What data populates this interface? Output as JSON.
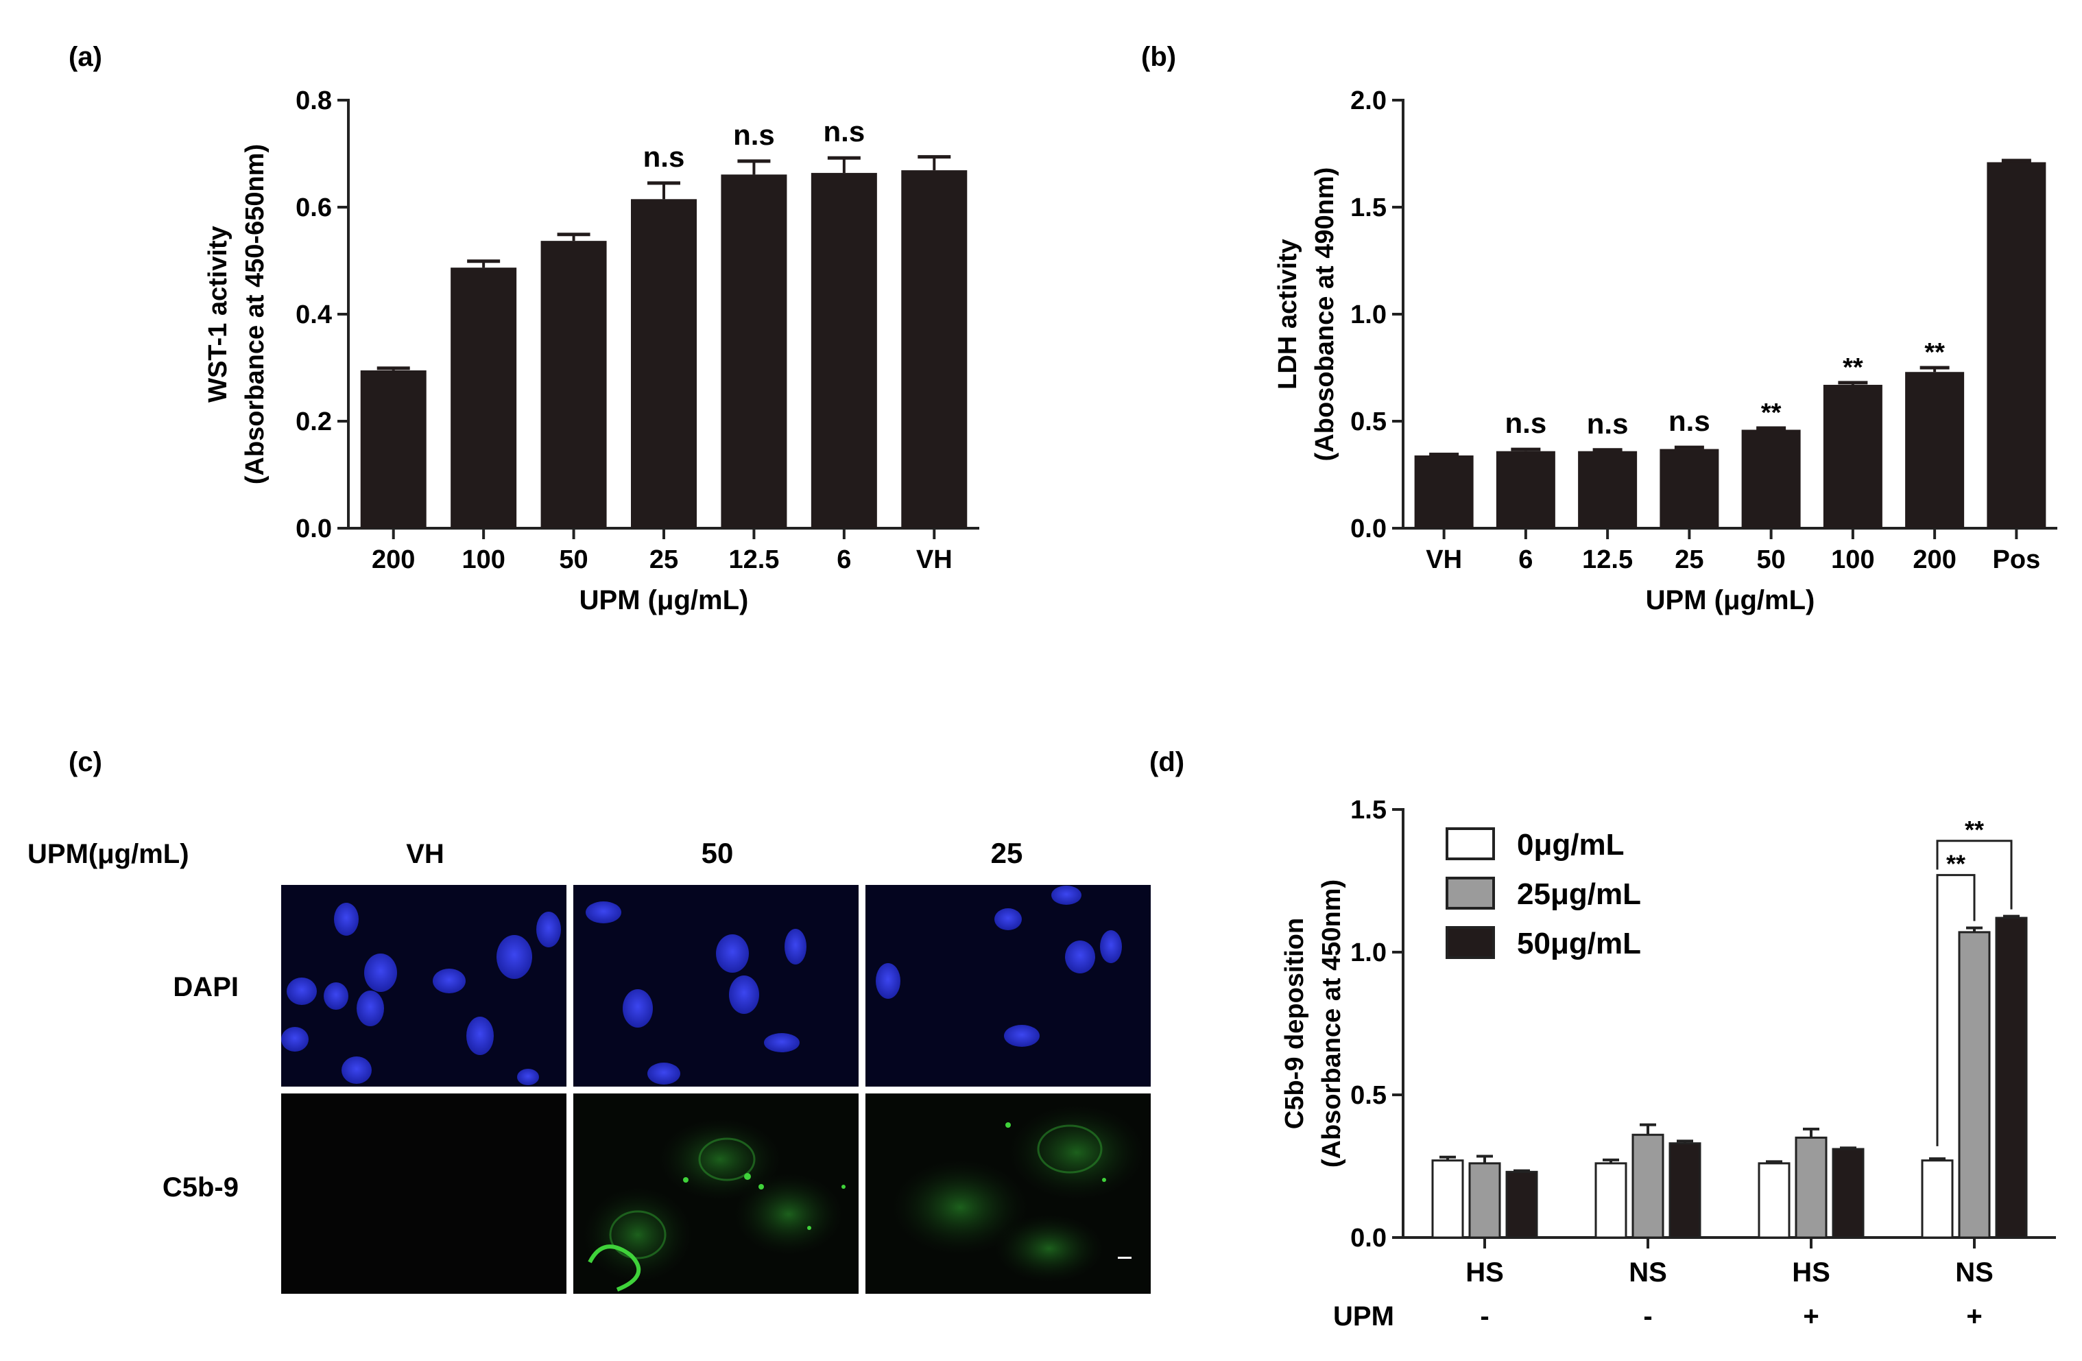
{
  "panel_labels": [
    "(a)",
    "(b)",
    "(c)",
    "(d)"
  ],
  "colors": {
    "bar_dark": "#221b1b",
    "bar_gray": "#9b9b9b",
    "bar_white": "#ffffff",
    "nucleus_blue": "#2a33d6",
    "stain_green": "#3fd23a",
    "image_bg": "#04051f"
  },
  "panel_c": {
    "row_header": "UPM(μg/mL)",
    "columns": [
      "VH",
      "50",
      "25"
    ],
    "rows": [
      "DAPI",
      "C5b-9"
    ]
  },
  "chart_data": [
    {
      "panel": "(a)",
      "type": "bar",
      "categories": [
        "200",
        "100",
        "50",
        "25",
        "12.5",
        "6",
        "VH"
      ],
      "values": [
        0.295,
        0.487,
        0.537,
        0.615,
        0.661,
        0.664,
        0.669
      ],
      "errors": [
        0.004,
        0.012,
        0.012,
        0.03,
        0.025,
        0.028,
        0.025
      ],
      "annotations": [
        "",
        "",
        "",
        "n.s",
        "n.s",
        "n.s",
        ""
      ],
      "ylabel_line1": "WST-1 activity",
      "ylabel_line2": "(Absorbance at 450-650nm)",
      "xlabel": "UPM (μg/mL)",
      "ylim": [
        0,
        0.8
      ],
      "yticks": [
        "0.0",
        "0.2",
        "0.4",
        "0.6",
        "0.8"
      ]
    },
    {
      "panel": "(b)",
      "type": "bar",
      "categories": [
        "VH",
        "6",
        "12.5",
        "25",
        "50",
        "100",
        "200",
        "Pos"
      ],
      "values": [
        0.34,
        0.36,
        0.36,
        0.37,
        0.46,
        0.67,
        0.73,
        1.71
      ],
      "errors": [
        0.005,
        0.008,
        0.006,
        0.008,
        0.008,
        0.01,
        0.02,
        0.008
      ],
      "annotations": [
        "",
        "n.s",
        "n.s",
        "n.s",
        "**",
        "**",
        "**",
        ""
      ],
      "ylabel_line1": "LDH activity",
      "ylabel_line2": "(Abosobance at 490nm)",
      "xlabel": "UPM (μg/mL)",
      "ylim": [
        0,
        2.0
      ],
      "yticks": [
        "0.0",
        "0.5",
        "1.0",
        "1.5",
        "2.0"
      ]
    },
    {
      "panel": "(d)",
      "type": "bar",
      "categories": [
        "HS",
        "NS",
        "HS",
        "NS"
      ],
      "upm_row_label": "UPM",
      "upm_signs": [
        "-",
        "-",
        "+",
        "+"
      ],
      "series": [
        {
          "name": "0μg/mL",
          "values": [
            0.27,
            0.26,
            0.26,
            0.27
          ],
          "errors": [
            0.012,
            0.012,
            0.006,
            0.006
          ]
        },
        {
          "name": "25μg/mL",
          "values": [
            0.26,
            0.36,
            0.35,
            1.07
          ],
          "errors": [
            0.025,
            0.035,
            0.03,
            0.015
          ]
        },
        {
          "name": "50μg/mL",
          "values": [
            0.23,
            0.33,
            0.31,
            1.12
          ],
          "errors": [
            0.004,
            0.008,
            0.004,
            0.006
          ]
        }
      ],
      "significance": [
        "**",
        "**"
      ],
      "ylabel_line1": "C5b-9 deposition",
      "ylabel_line2": "(Absorbance at 450nm)",
      "ylim": [
        0,
        1.5
      ],
      "yticks": [
        "0.0",
        "0.5",
        "1.0",
        "1.5"
      ],
      "legend_position": "top-left"
    }
  ]
}
